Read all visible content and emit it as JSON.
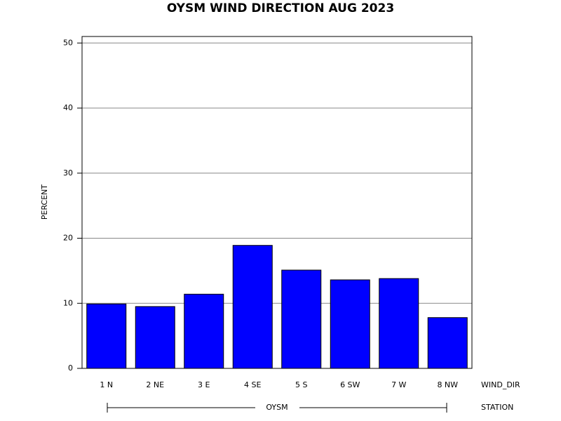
{
  "chart_data": {
    "type": "bar",
    "title": "OYSM WIND DIRECTION AUG 2023",
    "y_label": "PERCENT",
    "x_label": "WIND_DIR",
    "group_label": "OYSM",
    "group_axis_label": "STATION",
    "categories": [
      "1 N",
      "2 NE",
      "3 E",
      "4 SE",
      "5 S",
      "6 SW",
      "7 W",
      "8 NW"
    ],
    "values": [
      9.9,
      9.5,
      11.4,
      18.9,
      15.1,
      13.6,
      13.8,
      7.8
    ],
    "color": "#0000ff",
    "ylim": [
      0,
      51
    ],
    "yticks": [
      0,
      10,
      20,
      30,
      40,
      50
    ],
    "grid": true
  }
}
